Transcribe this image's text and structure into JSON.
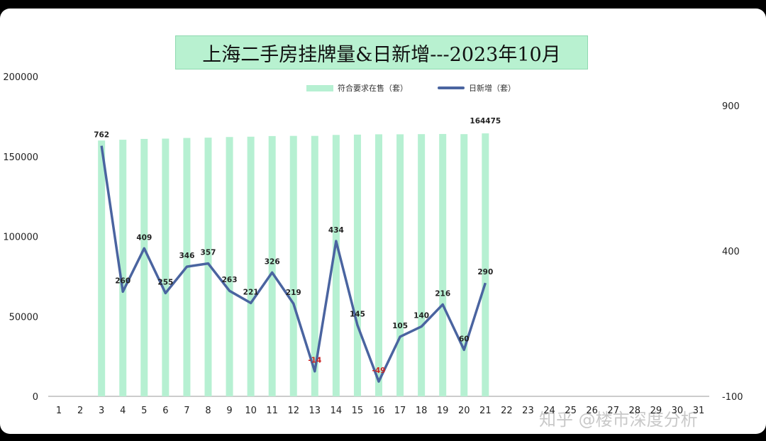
{
  "title": "上海二手房挂牌量&日新增---2023年10月",
  "watermark": "知乎 @楼市深度分析",
  "chart_data": {
    "type": "bar+line",
    "categories": [
      "1",
      "2",
      "3",
      "4",
      "5",
      "6",
      "7",
      "8",
      "9",
      "10",
      "11",
      "12",
      "13",
      "14",
      "15",
      "16",
      "17",
      "18",
      "19",
      "20",
      "21",
      "22",
      "23",
      "24",
      "25",
      "26",
      "27",
      "28",
      "29",
      "30",
      "31"
    ],
    "series": [
      {
        "name": "符合要求在售（套）",
        "axis": "left",
        "kind": "bar",
        "color": "#b6f0d2",
        "values": [
          null,
          null,
          160000,
          160500,
          161000,
          161200,
          161600,
          161800,
          162200,
          162400,
          162800,
          162900,
          162900,
          163500,
          163700,
          163900,
          163900,
          164000,
          164100,
          164000,
          164475,
          null,
          null,
          null,
          null,
          null,
          null,
          null,
          null,
          null,
          null
        ]
      },
      {
        "name": "日新增（套）",
        "axis": "right",
        "kind": "line",
        "color": "#4a64a0",
        "values": [
          null,
          null,
          762,
          260,
          409,
          255,
          346,
          357,
          263,
          221,
          326,
          219,
          -14,
          434,
          145,
          -49,
          105,
          140,
          216,
          60,
          290,
          null,
          null,
          null,
          null,
          null,
          null,
          null,
          null,
          null,
          null
        ]
      }
    ],
    "data_labels_line": [
      "762",
      "260",
      "409",
      "255",
      "346",
      "357",
      "263",
      "221",
      "326",
      "219",
      "-14",
      "434",
      "145",
      "-49",
      "105",
      "140",
      "216",
      "60",
      "290"
    ],
    "data_label_bar_last": "164475",
    "left_axis": {
      "ticks": [
        "0",
        "50000",
        "100000",
        "150000",
        "200000"
      ],
      "range": [
        0,
        200000
      ]
    },
    "right_axis": {
      "ticks": [
        "-100",
        "400",
        "900"
      ],
      "range": [
        -100,
        900
      ]
    },
    "legend_position": "top",
    "grid": false
  }
}
